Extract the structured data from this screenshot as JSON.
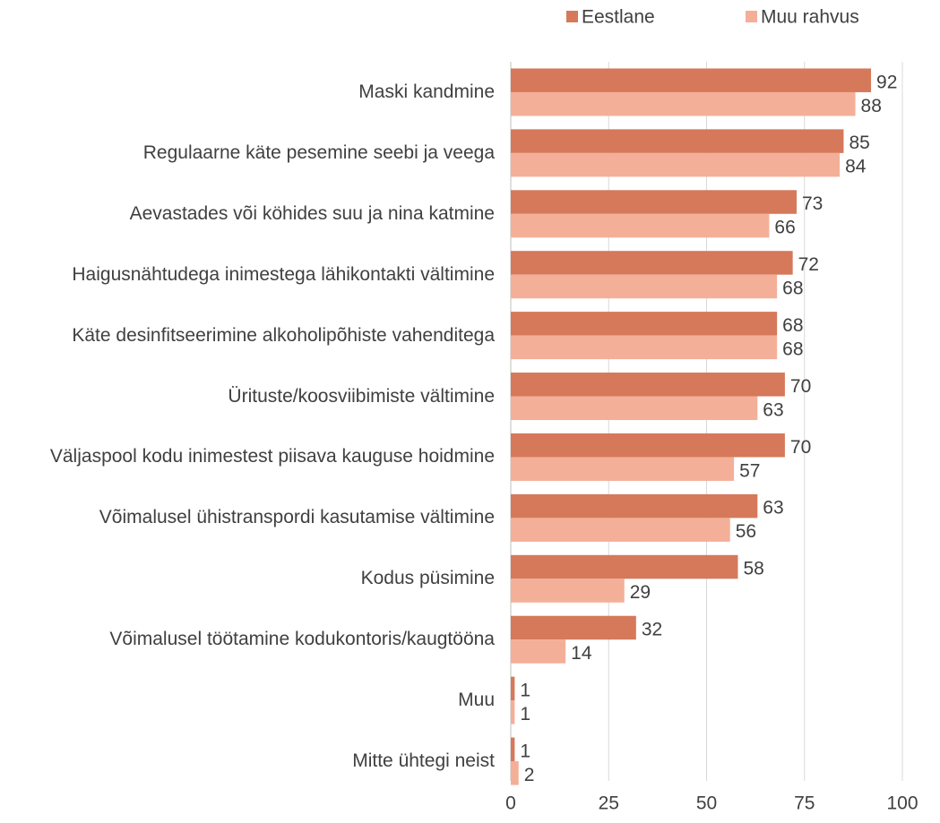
{
  "chart_data": {
    "type": "bar",
    "orientation": "horizontal",
    "categories": [
      "Maski kandmine",
      "Regulaarne käte pesemine seebi ja veega",
      "Aevastades või köhides suu ja nina katmine",
      "Haigusnähtudega inimestega lähikontakti vältimine",
      "Käte desinfitseerimine alkoholipõhiste vahenditega",
      "Ürituste/koosviibimiste vältimine",
      "Väljaspool kodu inimestest piisava kauguse hoidmine",
      "Võimalusel ühistranspordi kasutamise vältimine",
      "Kodus püsimine",
      "Võimalusel töötamine kodukontoris/kaugtööna",
      "Muu",
      "Mitte ühtegi neist"
    ],
    "series": [
      {
        "name": "Eestlane",
        "color": "#d5795a",
        "values": [
          92,
          85,
          73,
          72,
          68,
          70,
          70,
          63,
          58,
          32,
          1,
          1
        ]
      },
      {
        "name": "Muu rahvus",
        "color": "#f4af98",
        "values": [
          88,
          84,
          66,
          68,
          68,
          63,
          57,
          56,
          29,
          14,
          1,
          2
        ]
      }
    ],
    "xlim": [
      0,
      100
    ],
    "xticks": [
      0,
      25,
      50,
      75,
      100
    ],
    "grid": true,
    "legend": "top"
  }
}
